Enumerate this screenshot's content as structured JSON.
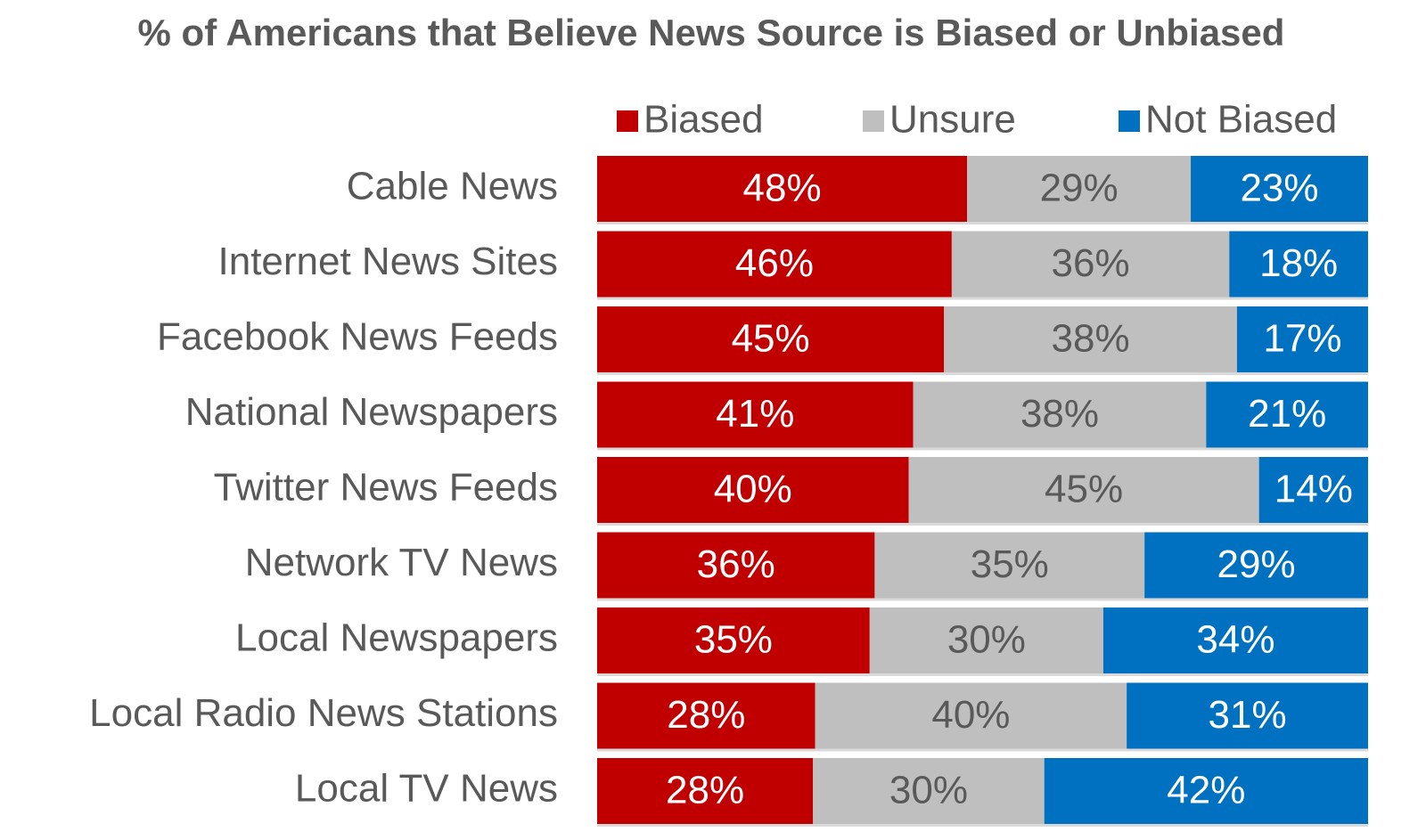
{
  "chart_data": {
    "type": "bar",
    "orientation": "horizontal",
    "stacking": "percent",
    "title": "% of Americans that Believe News Source is Biased or Unbiased",
    "categories": [
      "Cable News",
      "Internet News Sites",
      "Facebook News Feeds",
      "National Newspapers",
      "Twitter News Feeds",
      "Network TV News",
      "Local Newspapers",
      "Local Radio News Stations",
      "Local TV News"
    ],
    "series": [
      {
        "name": "Biased",
        "color": "#c00000",
        "label_color": "#ffffff",
        "values": [
          48,
          46,
          45,
          41,
          40,
          36,
          35,
          28,
          28
        ],
        "value_labels": [
          "48%",
          "46%",
          "45%",
          "41%",
          "40%",
          "36%",
          "35%",
          "28%",
          "28%"
        ]
      },
      {
        "name": "Unsure",
        "color": "#bfbfbf",
        "label_color": "#595959",
        "values": [
          29,
          36,
          38,
          38,
          45,
          35,
          30,
          40,
          30
        ],
        "value_labels": [
          "29%",
          "36%",
          "38%",
          "38%",
          "45%",
          "35%",
          "30%",
          "40%",
          "30%"
        ]
      },
      {
        "name": "Not Biased",
        "color": "#0070c0",
        "label_color": "#ffffff",
        "values": [
          23,
          18,
          17,
          21,
          14,
          29,
          34,
          31,
          42
        ],
        "value_labels": [
          "23%",
          "18%",
          "17%",
          "21%",
          "14%",
          "29%",
          "34%",
          "31%",
          "42%"
        ]
      }
    ],
    "legend": "top"
  }
}
